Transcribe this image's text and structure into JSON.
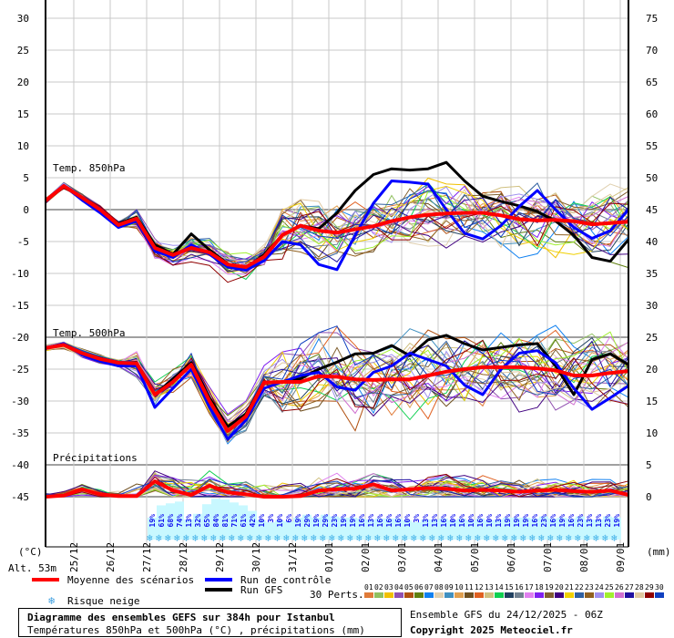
{
  "chart_data": {
    "type": "line",
    "title": "Diagramme des ensembles GEFS sur 384h pour Istanbul",
    "subtitle": "Températures 850hPa et 500hPa (°C) , précipitations (mm)",
    "run_info": "Ensemble GFS du 24/12/2025 - 06Z",
    "copyright": "Copyright 2025 Meteociel.fr",
    "altitude": "Alt. 53m",
    "left_axis": {
      "unit": "(°C)",
      "range": [
        -45,
        30
      ],
      "ticks": [
        "30",
        "25",
        "20",
        "15",
        "10",
        "5",
        "0",
        "-5",
        "-10",
        "-15",
        "-20",
        "-25",
        "-30",
        "-35",
        "-40",
        "-45"
      ]
    },
    "right_axis": {
      "unit": "(mm)",
      "range": [
        0,
        75
      ],
      "ticks": [
        "75",
        "70",
        "65",
        "60",
        "55",
        "50",
        "45",
        "40",
        "35",
        "30",
        "25",
        "20",
        "15",
        "10",
        "5",
        "0"
      ]
    },
    "x_ticks": [
      "25/12",
      "26/12",
      "27/12",
      "28/12",
      "29/12",
      "30/12",
      "31/12",
      "01/01",
      "02/01",
      "03/01",
      "04/01",
      "05/01",
      "06/01",
      "07/01",
      "08/01",
      "09/01"
    ],
    "grid": true,
    "panel_labels": {
      "t850": "Temp. 850hPa",
      "t500": "Temp. 500hPa",
      "precip": "Précipitations"
    },
    "x_hours": [
      0,
      12,
      24,
      36,
      48,
      60,
      72,
      84,
      96,
      108,
      120,
      132,
      144,
      156,
      168,
      180,
      192,
      204,
      216,
      228,
      240,
      252,
      264,
      276,
      288,
      300,
      312,
      324,
      336,
      348,
      360,
      372,
      384
    ],
    "t850": {
      "mean": [
        1.4,
        3.7,
        1.9,
        0,
        -2.4,
        -1.4,
        -6,
        -7.1,
        -6,
        -6.7,
        -8.6,
        -9,
        -7.4,
        -4,
        -2.5,
        -3.3,
        -3.6,
        -3.1,
        -2.6,
        -1.8,
        -1.2,
        -0.8,
        -0.6,
        -0.5,
        -0.5,
        -0.9,
        -1.5,
        -1.7,
        -1.6,
        -1.8,
        -2.3,
        -2.1,
        -1.9
      ],
      "control": [
        1.4,
        3.8,
        1.5,
        -0.5,
        -2.8,
        -1.8,
        -6.5,
        -7.5,
        -5.5,
        -7,
        -9,
        -9.5,
        -8,
        -5,
        -5.5,
        -8.6,
        -9.4,
        -4,
        1,
        4.5,
        4.3,
        4,
        0,
        -3.7,
        -4.6,
        -2.5,
        0.5,
        3,
        0,
        -2.8,
        -4.5,
        -3.3,
        0
      ],
      "gfs": [
        1.3,
        3.6,
        1.8,
        -0.3,
        -2.2,
        -1.2,
        -5.5,
        -7,
        -3.8,
        -6.3,
        -8.5,
        -9.3,
        -7,
        -4,
        -2.5,
        -3,
        -0.5,
        3,
        5.5,
        6.4,
        6.2,
        6.4,
        7.4,
        4.5,
        2.1,
        1.3,
        0.6,
        -0.3,
        -1.8,
        -4,
        -7.5,
        -8.1,
        -4.7
      ]
    },
    "t500": {
      "mean": [
        -21.7,
        -21.2,
        -22.5,
        -23.4,
        -24,
        -24.1,
        -29,
        -27,
        -24.3,
        -30,
        -34.7,
        -32.4,
        -27.1,
        -27,
        -27,
        -26.1,
        -26.2,
        -26.6,
        -26.7,
        -26.6,
        -26.6,
        -26,
        -25.4,
        -25,
        -24.7,
        -24.7,
        -24.7,
        -24.9,
        -25.2,
        -26,
        -26,
        -25.6,
        -25.3
      ],
      "control": [
        -21.8,
        -21,
        -22.8,
        -23.8,
        -24.5,
        -24.5,
        -31,
        -28,
        -25,
        -31,
        -36,
        -33,
        -28,
        -27,
        -26,
        -25.5,
        -27.8,
        -28.3,
        -25.5,
        -24.5,
        -22.5,
        -23.5,
        -24.5,
        -27.5,
        -29,
        -25,
        -22.5,
        -22.1,
        -24,
        -28,
        -31.3,
        -29.5,
        -27.6
      ],
      "gfs": [
        -21.7,
        -21,
        -22.6,
        -23.3,
        -24,
        -24,
        -29,
        -26.5,
        -24,
        -29.5,
        -34,
        -32,
        -27,
        -27,
        -26.5,
        -25,
        -23.9,
        -22.6,
        -22.5,
        -21.3,
        -22.9,
        -20.4,
        -19.7,
        -21,
        -22,
        -21.6,
        -21.2,
        -21,
        -24.5,
        -29,
        -23.5,
        -22.6,
        -24.3
      ]
    },
    "precip_mean": [
      0,
      0.2,
      1.2,
      0.4,
      0.1,
      0.1,
      2.5,
      1,
      0.3,
      1.8,
      0.7,
      0.4,
      0,
      0,
      0.1,
      1,
      1.2,
      1.3,
      2,
      1,
      1.2,
      1.4,
      1.3,
      1,
      1.1,
      1,
      0.8,
      1,
      1.1,
      0.9,
      0.8,
      1,
      0.3
    ],
    "snow_risk_pct": [
      "19%",
      "61%",
      "68%",
      "74%",
      "13%",
      "32%",
      "65%",
      "84%",
      "81%",
      "71%",
      "61%",
      "42%",
      "10%",
      "3%",
      "10%",
      "6%",
      "19%",
      "29%",
      "19%",
      "29%",
      "23%",
      "19%",
      "19%",
      "16%",
      "13%",
      "16%",
      "16%",
      "16%",
      "10%",
      "3%",
      "13%",
      "13%",
      "16%",
      "10%",
      "16%",
      "10%",
      "16%",
      "10%",
      "13%",
      "19%",
      "19%",
      "19%",
      "16%",
      "23%",
      "16%",
      "19%",
      "16%",
      "23%",
      "13%",
      "13%",
      "23%",
      "19%"
    ],
    "colors": {
      "mean": "#ff0000",
      "control": "#0000ff",
      "gfs": "#000000",
      "snow_band": "#c8f8ff",
      "snow_text": "#1010f0"
    }
  },
  "legend": {
    "mean_label": "Moyenne des scénarios",
    "control_label": "Run de contrôle",
    "gfs_label": "Run GFS",
    "snow_label": "Risque neige",
    "perts_label": "30 Perts.",
    "perts": [
      {
        "id": "01",
        "color": "#e07b39"
      },
      {
        "id": "02",
        "color": "#90c060"
      },
      {
        "id": "03",
        "color": "#f0c000"
      },
      {
        "id": "04",
        "color": "#9050b0"
      },
      {
        "id": "05",
        "color": "#b05010"
      },
      {
        "id": "06",
        "color": "#608010"
      },
      {
        "id": "07",
        "color": "#1080f0"
      },
      {
        "id": "08",
        "color": "#e0d0b0"
      },
      {
        "id": "09",
        "color": "#4090c0"
      },
      {
        "id": "10",
        "color": "#e0a050"
      },
      {
        "id": "11",
        "color": "#705020"
      },
      {
        "id": "12",
        "color": "#e06020"
      },
      {
        "id": "13",
        "color": "#d0c080"
      },
      {
        "id": "14",
        "color": "#10d050"
      },
      {
        "id": "15",
        "color": "#204060"
      },
      {
        "id": "16",
        "color": "#708090"
      },
      {
        "id": "17",
        "color": "#e080f0"
      },
      {
        "id": "18",
        "color": "#8020f0"
      },
      {
        "id": "19",
        "color": "#806030"
      },
      {
        "id": "20",
        "color": "#400080"
      },
      {
        "id": "21",
        "color": "#f0d000"
      },
      {
        "id": "22",
        "color": "#3060a0"
      },
      {
        "id": "23",
        "color": "#906020"
      },
      {
        "id": "24",
        "color": "#a090f0"
      },
      {
        "id": "25",
        "color": "#a0f030"
      },
      {
        "id": "26",
        "color": "#d070d0"
      },
      {
        "id": "27",
        "color": "#2010a0"
      },
      {
        "id": "28",
        "color": "#e0c8a0"
      },
      {
        "id": "29",
        "color": "#900000"
      },
      {
        "id": "30",
        "color": "#1040c0"
      }
    ]
  }
}
